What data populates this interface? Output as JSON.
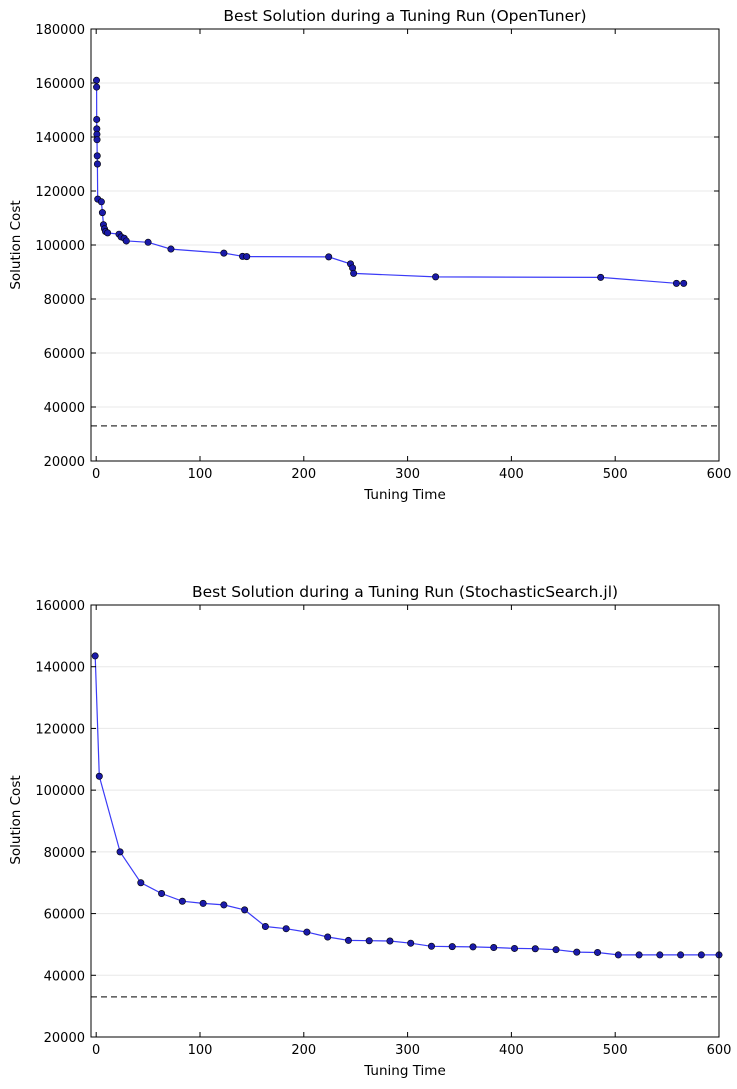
{
  "colors": {
    "series_line": "#3b3bf7",
    "series_marker": "#1a1aa8",
    "marker_edge": "#000000",
    "reference_line": "#333333",
    "axes": "#000000",
    "grid": "#e8e8e8",
    "background": "#ffffff"
  },
  "chart_data": [
    {
      "type": "line",
      "title": "Best Solution during a Tuning Run (OpenTuner)",
      "xlabel": "Tuning Time",
      "ylabel": "Solution Cost",
      "xlim": [
        -5,
        600
      ],
      "ylim": [
        20000,
        180000
      ],
      "xticks": [
        0,
        100,
        200,
        300,
        400,
        500,
        600
      ],
      "yticks": [
        20000,
        40000,
        60000,
        80000,
        100000,
        120000,
        140000,
        160000,
        180000
      ],
      "grid": "horizontal",
      "reference_line": 33000,
      "series": [
        {
          "x": [
            0.3,
            0.4,
            0.5,
            0.6,
            0.7,
            0.8,
            1.0,
            1.2,
            1.5,
            5,
            6,
            7,
            8,
            9,
            11,
            22,
            24,
            27,
            29,
            50,
            72,
            123,
            141,
            145,
            224,
            245,
            247,
            248,
            327,
            486,
            559,
            566
          ],
          "y": [
            161000,
            158500,
            146500,
            143000,
            141000,
            139000,
            133000,
            130000,
            117000,
            116000,
            112000,
            107500,
            106000,
            105000,
            104500,
            104000,
            103000,
            102500,
            101500,
            101000,
            98500,
            97000,
            95800,
            95700,
            95600,
            93000,
            91500,
            89500,
            88200,
            88000,
            85800,
            85800
          ]
        }
      ]
    },
    {
      "type": "line",
      "title": "Best Solution during a Tuning Run (StochasticSearch.jl)",
      "xlabel": "Tuning Time",
      "ylabel": "Solution Cost",
      "xlim": [
        -5,
        600
      ],
      "ylim": [
        20000,
        160000
      ],
      "xticks": [
        0,
        100,
        200,
        300,
        400,
        500,
        600
      ],
      "yticks": [
        20000,
        40000,
        60000,
        80000,
        100000,
        120000,
        140000,
        160000
      ],
      "grid": "horizontal",
      "reference_line": 33000,
      "series": [
        {
          "x": [
            -1,
            3,
            23,
            43,
            63,
            83,
            103,
            123,
            143,
            163,
            183,
            203,
            223,
            243,
            263,
            283,
            303,
            323,
            343,
            363,
            383,
            403,
            423,
            443,
            463,
            483,
            503,
            523,
            543,
            563,
            583,
            600
          ],
          "y": [
            143500,
            104500,
            80000,
            70000,
            66500,
            64000,
            63300,
            62800,
            61200,
            55800,
            55100,
            54000,
            52400,
            51300,
            51200,
            51100,
            50400,
            49400,
            49300,
            49200,
            49000,
            48700,
            48600,
            48300,
            47500,
            47400,
            46600,
            46600,
            46600,
            46600,
            46600,
            46600
          ]
        }
      ]
    }
  ]
}
